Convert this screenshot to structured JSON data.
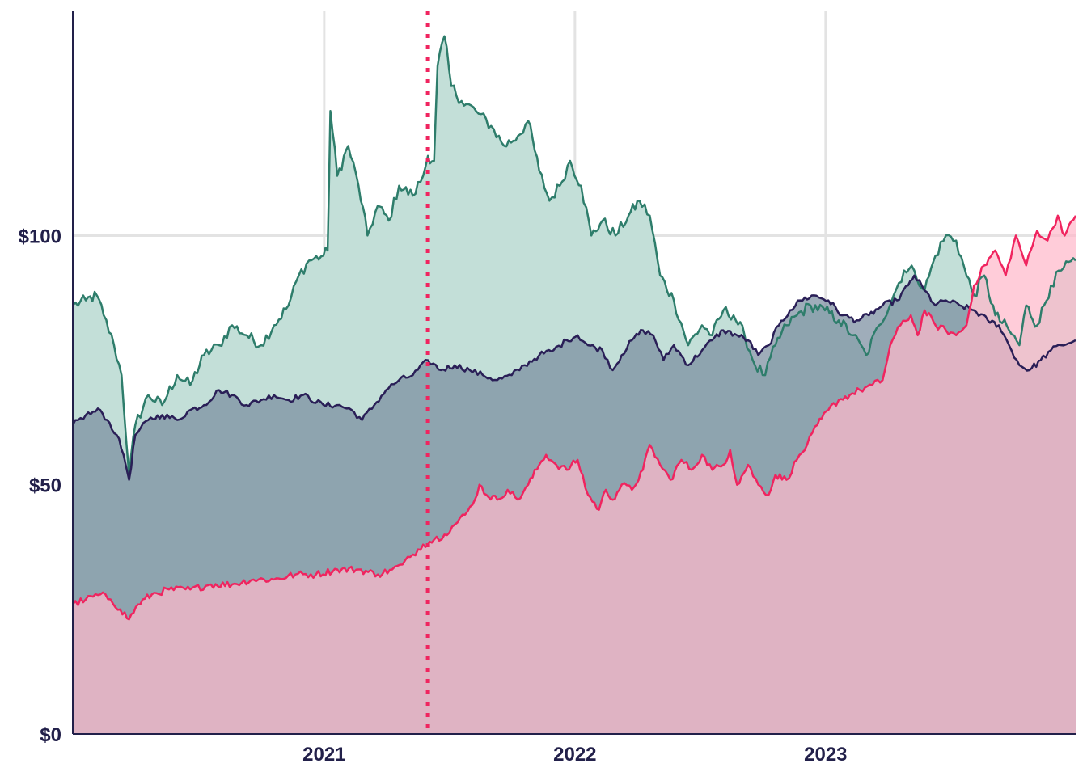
{
  "chart_data": {
    "type": "area",
    "title": "",
    "xlabel": "",
    "ylabel": "",
    "x_range": [
      "2020-01-01",
      "2023-12-31"
    ],
    "ylim": [
      0,
      145
    ],
    "y_ticks": [
      {
        "value": 0,
        "label": "$0"
      },
      {
        "value": 50,
        "label": "$50"
      },
      {
        "value": 100,
        "label": "$100"
      }
    ],
    "x_ticks": [
      {
        "value": "2021-01-01",
        "label": "2021"
      },
      {
        "value": "2022-01-01",
        "label": "2022"
      },
      {
        "value": "2023-01-01",
        "label": "2023"
      }
    ],
    "grid": true,
    "marker_line": {
      "date": "2021-06-01",
      "style": "dotted",
      "color": "#f0245f"
    },
    "series": [
      {
        "color": "#2e7d6b",
        "fill": "#c3dfd8",
        "points": [
          [
            "2020-01-01",
            86
          ],
          [
            "2020-01-20",
            87
          ],
          [
            "2020-02-05",
            88
          ],
          [
            "2020-02-15",
            84
          ],
          [
            "2020-03-01",
            78
          ],
          [
            "2020-03-12",
            72
          ],
          [
            "2020-03-23",
            52
          ],
          [
            "2020-04-01",
            62
          ],
          [
            "2020-04-20",
            68
          ],
          [
            "2020-05-10",
            66
          ],
          [
            "2020-06-01",
            72
          ],
          [
            "2020-06-20",
            70
          ],
          [
            "2020-07-10",
            76
          ],
          [
            "2020-08-01",
            78
          ],
          [
            "2020-08-20",
            82
          ],
          [
            "2020-09-10",
            80
          ],
          [
            "2020-10-01",
            78
          ],
          [
            "2020-10-20",
            82
          ],
          [
            "2020-11-10",
            86
          ],
          [
            "2020-11-25",
            92
          ],
          [
            "2020-12-10",
            95
          ],
          [
            "2020-12-31",
            96
          ],
          [
            "2021-01-06",
            97
          ],
          [
            "2021-01-10",
            125
          ],
          [
            "2021-01-20",
            112
          ],
          [
            "2021-02-05",
            118
          ],
          [
            "2021-02-20",
            110
          ],
          [
            "2021-03-05",
            100
          ],
          [
            "2021-03-20",
            106
          ],
          [
            "2021-04-05",
            103
          ],
          [
            "2021-04-20",
            110
          ],
          [
            "2021-05-10",
            108
          ],
          [
            "2021-05-25",
            112
          ],
          [
            "2021-06-01",
            116
          ],
          [
            "2021-06-10",
            115
          ],
          [
            "2021-06-15",
            134
          ],
          [
            "2021-06-25",
            140
          ],
          [
            "2021-07-05",
            130
          ],
          [
            "2021-07-20",
            127
          ],
          [
            "2021-08-10",
            125
          ],
          [
            "2021-09-01",
            122
          ],
          [
            "2021-09-20",
            118
          ],
          [
            "2021-10-10",
            120
          ],
          [
            "2021-10-25",
            123
          ],
          [
            "2021-11-10",
            113
          ],
          [
            "2021-11-25",
            107
          ],
          [
            "2021-12-10",
            110
          ],
          [
            "2021-12-25",
            115
          ],
          [
            "2022-01-10",
            110
          ],
          [
            "2022-01-25",
            100
          ],
          [
            "2022-02-10",
            103
          ],
          [
            "2022-03-01",
            100
          ],
          [
            "2022-03-20",
            104
          ],
          [
            "2022-04-05",
            107
          ],
          [
            "2022-04-20",
            104
          ],
          [
            "2022-05-05",
            92
          ],
          [
            "2022-05-25",
            87
          ],
          [
            "2022-06-15",
            78
          ],
          [
            "2022-07-05",
            82
          ],
          [
            "2022-07-20",
            80
          ],
          [
            "2022-08-05",
            85
          ],
          [
            "2022-08-20",
            84
          ],
          [
            "2022-09-05",
            80
          ],
          [
            "2022-09-20",
            74
          ],
          [
            "2022-10-05",
            72
          ],
          [
            "2022-10-20",
            78
          ],
          [
            "2022-11-05",
            82
          ],
          [
            "2022-11-20",
            84
          ],
          [
            "2022-12-10",
            86
          ],
          [
            "2022-12-31",
            85
          ],
          [
            "2023-01-20",
            83
          ],
          [
            "2023-02-10",
            80
          ],
          [
            "2023-03-01",
            76
          ],
          [
            "2023-03-20",
            82
          ],
          [
            "2023-04-10",
            88
          ],
          [
            "2023-04-25",
            93
          ],
          [
            "2023-05-10",
            93
          ],
          [
            "2023-05-25",
            89
          ],
          [
            "2023-06-10",
            96
          ],
          [
            "2023-06-25",
            100
          ],
          [
            "2023-07-10",
            99
          ],
          [
            "2023-07-25",
            92
          ],
          [
            "2023-08-05",
            88
          ],
          [
            "2023-08-20",
            92
          ],
          [
            "2023-09-05",
            84
          ],
          [
            "2023-09-25",
            81
          ],
          [
            "2023-10-10",
            78
          ],
          [
            "2023-10-20",
            86
          ],
          [
            "2023-11-05",
            82
          ],
          [
            "2023-11-25",
            90
          ],
          [
            "2023-12-10",
            93
          ],
          [
            "2023-12-31",
            95
          ]
        ]
      },
      {
        "color": "#2a1f57",
        "fill": "#7a8ea0",
        "points": [
          [
            "2020-01-01",
            62
          ],
          [
            "2020-01-20",
            64
          ],
          [
            "2020-02-10",
            65
          ],
          [
            "2020-02-20",
            63
          ],
          [
            "2020-03-05",
            60
          ],
          [
            "2020-03-15",
            56
          ],
          [
            "2020-03-23",
            51
          ],
          [
            "2020-04-01",
            60
          ],
          [
            "2020-04-20",
            63
          ],
          [
            "2020-05-10",
            64
          ],
          [
            "2020-06-01",
            63
          ],
          [
            "2020-06-20",
            65
          ],
          [
            "2020-07-10",
            66
          ],
          [
            "2020-08-01",
            69
          ],
          [
            "2020-08-20",
            68
          ],
          [
            "2020-09-10",
            66
          ],
          [
            "2020-10-01",
            67
          ],
          [
            "2020-10-20",
            68
          ],
          [
            "2020-11-10",
            67
          ],
          [
            "2020-12-01",
            68
          ],
          [
            "2020-12-31",
            66
          ],
          [
            "2021-01-20",
            66
          ],
          [
            "2021-02-10",
            65
          ],
          [
            "2021-02-25",
            63
          ],
          [
            "2021-03-15",
            66
          ],
          [
            "2021-04-01",
            69
          ],
          [
            "2021-04-20",
            71
          ],
          [
            "2021-05-10",
            72
          ],
          [
            "2021-06-01",
            75
          ],
          [
            "2021-06-20",
            73
          ],
          [
            "2021-07-10",
            74
          ],
          [
            "2021-08-01",
            73
          ],
          [
            "2021-08-20",
            72
          ],
          [
            "2021-09-10",
            71
          ],
          [
            "2021-10-01",
            72
          ],
          [
            "2021-10-20",
            74
          ],
          [
            "2021-11-10",
            76
          ],
          [
            "2021-12-01",
            77
          ],
          [
            "2021-12-20",
            79
          ],
          [
            "2022-01-05",
            80
          ],
          [
            "2022-01-20",
            78
          ],
          [
            "2022-02-10",
            77
          ],
          [
            "2022-02-25",
            73
          ],
          [
            "2022-03-10",
            76
          ],
          [
            "2022-03-25",
            79
          ],
          [
            "2022-04-10",
            81
          ],
          [
            "2022-04-25",
            80
          ],
          [
            "2022-05-10",
            75
          ],
          [
            "2022-05-25",
            78
          ],
          [
            "2022-06-15",
            74
          ],
          [
            "2022-07-05",
            77
          ],
          [
            "2022-07-20",
            79
          ],
          [
            "2022-08-05",
            81
          ],
          [
            "2022-08-25",
            80
          ],
          [
            "2022-09-10",
            79
          ],
          [
            "2022-09-25",
            76
          ],
          [
            "2022-10-10",
            78
          ],
          [
            "2022-10-25",
            82
          ],
          [
            "2022-11-10",
            85
          ],
          [
            "2022-11-25",
            87
          ],
          [
            "2022-12-15",
            88
          ],
          [
            "2023-01-05",
            87
          ],
          [
            "2023-01-25",
            84
          ],
          [
            "2023-02-15",
            83
          ],
          [
            "2023-03-05",
            84
          ],
          [
            "2023-03-25",
            86
          ],
          [
            "2023-04-15",
            87
          ],
          [
            "2023-05-01",
            90
          ],
          [
            "2023-05-10",
            92
          ],
          [
            "2023-05-25",
            89
          ],
          [
            "2023-06-10",
            86
          ],
          [
            "2023-06-25",
            87
          ],
          [
            "2023-07-15",
            86
          ],
          [
            "2023-08-05",
            85
          ],
          [
            "2023-08-25",
            83
          ],
          [
            "2023-09-10",
            82
          ],
          [
            "2023-09-25",
            78
          ],
          [
            "2023-10-10",
            74
          ],
          [
            "2023-10-25",
            73
          ],
          [
            "2023-11-10",
            75
          ],
          [
            "2023-11-25",
            77
          ],
          [
            "2023-12-10",
            78
          ],
          [
            "2023-12-31",
            79
          ]
        ]
      },
      {
        "color": "#f0245f",
        "fill": "#ffb8cb",
        "points": [
          [
            "2020-01-01",
            26
          ],
          [
            "2020-01-20",
            27
          ],
          [
            "2020-02-10",
            28
          ],
          [
            "2020-02-25",
            27
          ],
          [
            "2020-03-10",
            25
          ],
          [
            "2020-03-23",
            23
          ],
          [
            "2020-04-05",
            26
          ],
          [
            "2020-04-25",
            28
          ],
          [
            "2020-05-20",
            29
          ],
          [
            "2020-06-20",
            29
          ],
          [
            "2020-07-20",
            30
          ],
          [
            "2020-08-20",
            30
          ],
          [
            "2020-09-20",
            31
          ],
          [
            "2020-10-20",
            31
          ],
          [
            "2020-11-20",
            32
          ],
          [
            "2020-12-20",
            32
          ],
          [
            "2021-01-20",
            33
          ],
          [
            "2021-02-20",
            33
          ],
          [
            "2021-03-20",
            32
          ],
          [
            "2021-04-10",
            33
          ],
          [
            "2021-04-25",
            34
          ],
          [
            "2021-05-10",
            36
          ],
          [
            "2021-05-25",
            38
          ],
          [
            "2021-06-10",
            39
          ],
          [
            "2021-06-25",
            40
          ],
          [
            "2021-07-10",
            42
          ],
          [
            "2021-07-25",
            44
          ],
          [
            "2021-08-05",
            46
          ],
          [
            "2021-08-15",
            50
          ],
          [
            "2021-08-25",
            48
          ],
          [
            "2021-09-10",
            47
          ],
          [
            "2021-09-25",
            49
          ],
          [
            "2021-10-10",
            47
          ],
          [
            "2021-10-25",
            50
          ],
          [
            "2021-11-10",
            54
          ],
          [
            "2021-11-20",
            56
          ],
          [
            "2021-12-05",
            54
          ],
          [
            "2021-12-20",
            53
          ],
          [
            "2022-01-05",
            55
          ],
          [
            "2022-01-20",
            48
          ],
          [
            "2022-02-05",
            45
          ],
          [
            "2022-02-15",
            49
          ],
          [
            "2022-02-25",
            47
          ],
          [
            "2022-03-10",
            50
          ],
          [
            "2022-03-25",
            49
          ],
          [
            "2022-04-10",
            53
          ],
          [
            "2022-04-20",
            58
          ],
          [
            "2022-05-05",
            54
          ],
          [
            "2022-05-20",
            51
          ],
          [
            "2022-06-05",
            55
          ],
          [
            "2022-06-20",
            53
          ],
          [
            "2022-07-05",
            56
          ],
          [
            "2022-07-20",
            53
          ],
          [
            "2022-08-05",
            54
          ],
          [
            "2022-08-15",
            57
          ],
          [
            "2022-08-25",
            50
          ],
          [
            "2022-09-10",
            54
          ],
          [
            "2022-09-25",
            50
          ],
          [
            "2022-10-10",
            48
          ],
          [
            "2022-10-20",
            52
          ],
          [
            "2022-11-05",
            51
          ],
          [
            "2022-11-20",
            55
          ],
          [
            "2022-12-05",
            58
          ],
          [
            "2022-12-20",
            62
          ],
          [
            "2023-01-05",
            65
          ],
          [
            "2023-01-20",
            67
          ],
          [
            "2023-02-05",
            68
          ],
          [
            "2023-02-20",
            69
          ],
          [
            "2023-03-10",
            70
          ],
          [
            "2023-03-25",
            71
          ],
          [
            "2023-04-05",
            78
          ],
          [
            "2023-04-20",
            82
          ],
          [
            "2023-05-05",
            84
          ],
          [
            "2023-05-15",
            80
          ],
          [
            "2023-05-25",
            85
          ],
          [
            "2023-06-10",
            82
          ],
          [
            "2023-06-25",
            81
          ],
          [
            "2023-07-10",
            80
          ],
          [
            "2023-07-25",
            82
          ],
          [
            "2023-08-05",
            90
          ],
          [
            "2023-08-20",
            94
          ],
          [
            "2023-09-05",
            97
          ],
          [
            "2023-09-20",
            92
          ],
          [
            "2023-10-05",
            100
          ],
          [
            "2023-10-20",
            94
          ],
          [
            "2023-11-05",
            101
          ],
          [
            "2023-11-20",
            99
          ],
          [
            "2023-12-05",
            104
          ],
          [
            "2023-12-15",
            100
          ],
          [
            "2023-12-31",
            104
          ]
        ]
      }
    ]
  }
}
